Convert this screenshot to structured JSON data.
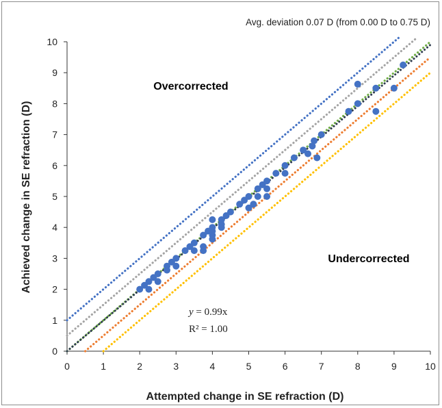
{
  "chart_data": {
    "type": "scatter",
    "title": "",
    "annotation": "Avg. deviation 0.07 D (from 0.00 D to 0.75 D)",
    "xlabel": "Attempted change in SE refraction (D)",
    "ylabel": "Achieved change in SE refraction (D)",
    "xlim": [
      0,
      10
    ],
    "ylim": [
      0,
      10
    ],
    "x_ticks": [
      "0",
      "1",
      "2",
      "3",
      "4",
      "5",
      "6",
      "7",
      "8",
      "9",
      "10"
    ],
    "y_ticks": [
      "0",
      "1",
      "2",
      "3",
      "4",
      "5",
      "6",
      "7",
      "8",
      "9",
      "10"
    ],
    "grid": false,
    "regions": {
      "over": {
        "label": "Overcorrected",
        "color": "#e8322c"
      },
      "under": {
        "label": "Undercorrected",
        "color": "#7cbf45"
      }
    },
    "fit": {
      "equation_lhs": "y",
      "equation_rhs": " = 0.99x",
      "r2_lhs": "R² = 1.00",
      "slope": 0.99
    },
    "reference_lines": [
      {
        "offset": 1.0,
        "color": "#4472c4"
      },
      {
        "offset": 0.5,
        "color": "#a5a5a5"
      },
      {
        "offset": 0.0,
        "color": "#70ad47"
      },
      {
        "offset": -0.5,
        "color": "#ed7d31"
      },
      {
        "offset": -1.0,
        "color": "#ffc000"
      }
    ],
    "trendline_color": "#2f3c4f",
    "point_color": "#4472c4",
    "points": [
      [
        2.0,
        2.0
      ],
      [
        2.13,
        2.13
      ],
      [
        2.25,
        2.0
      ],
      [
        2.25,
        2.25
      ],
      [
        2.38,
        2.38
      ],
      [
        2.5,
        2.5
      ],
      [
        2.5,
        2.25
      ],
      [
        2.75,
        2.75
      ],
      [
        2.75,
        2.62
      ],
      [
        2.88,
        2.88
      ],
      [
        3.0,
        2.75
      ],
      [
        3.0,
        3.0
      ],
      [
        3.25,
        3.25
      ],
      [
        3.38,
        3.38
      ],
      [
        3.5,
        3.5
      ],
      [
        3.5,
        3.25
      ],
      [
        3.75,
        3.75
      ],
      [
        3.75,
        3.38
      ],
      [
        3.75,
        3.25
      ],
      [
        3.88,
        3.88
      ],
      [
        4.0,
        4.0
      ],
      [
        4.0,
        4.25
      ],
      [
        4.0,
        3.88
      ],
      [
        4.0,
        3.75
      ],
      [
        4.0,
        3.62
      ],
      [
        4.25,
        4.25
      ],
      [
        4.25,
        4.1
      ],
      [
        4.25,
        4.0
      ],
      [
        4.38,
        4.38
      ],
      [
        4.5,
        4.5
      ],
      [
        4.75,
        4.75
      ],
      [
        4.88,
        4.88
      ],
      [
        5.0,
        5.0
      ],
      [
        5.0,
        4.63
      ],
      [
        5.13,
        4.75
      ],
      [
        5.25,
        5.25
      ],
      [
        5.25,
        5.0
      ],
      [
        5.38,
        5.38
      ],
      [
        5.5,
        5.5
      ],
      [
        5.5,
        5.25
      ],
      [
        5.5,
        5.0
      ],
      [
        5.75,
        5.75
      ],
      [
        6.0,
        6.0
      ],
      [
        6.0,
        5.75
      ],
      [
        6.25,
        6.25
      ],
      [
        6.5,
        6.5
      ],
      [
        6.63,
        6.38
      ],
      [
        6.75,
        6.63
      ],
      [
        6.8,
        6.8
      ],
      [
        6.88,
        6.25
      ],
      [
        7.0,
        7.0
      ],
      [
        7.75,
        7.75
      ],
      [
        8.0,
        8.63
      ],
      [
        8.0,
        8.0
      ],
      [
        8.5,
        8.5
      ],
      [
        8.5,
        7.75
      ],
      [
        9.0,
        8.5
      ],
      [
        9.25,
        9.25
      ]
    ]
  }
}
